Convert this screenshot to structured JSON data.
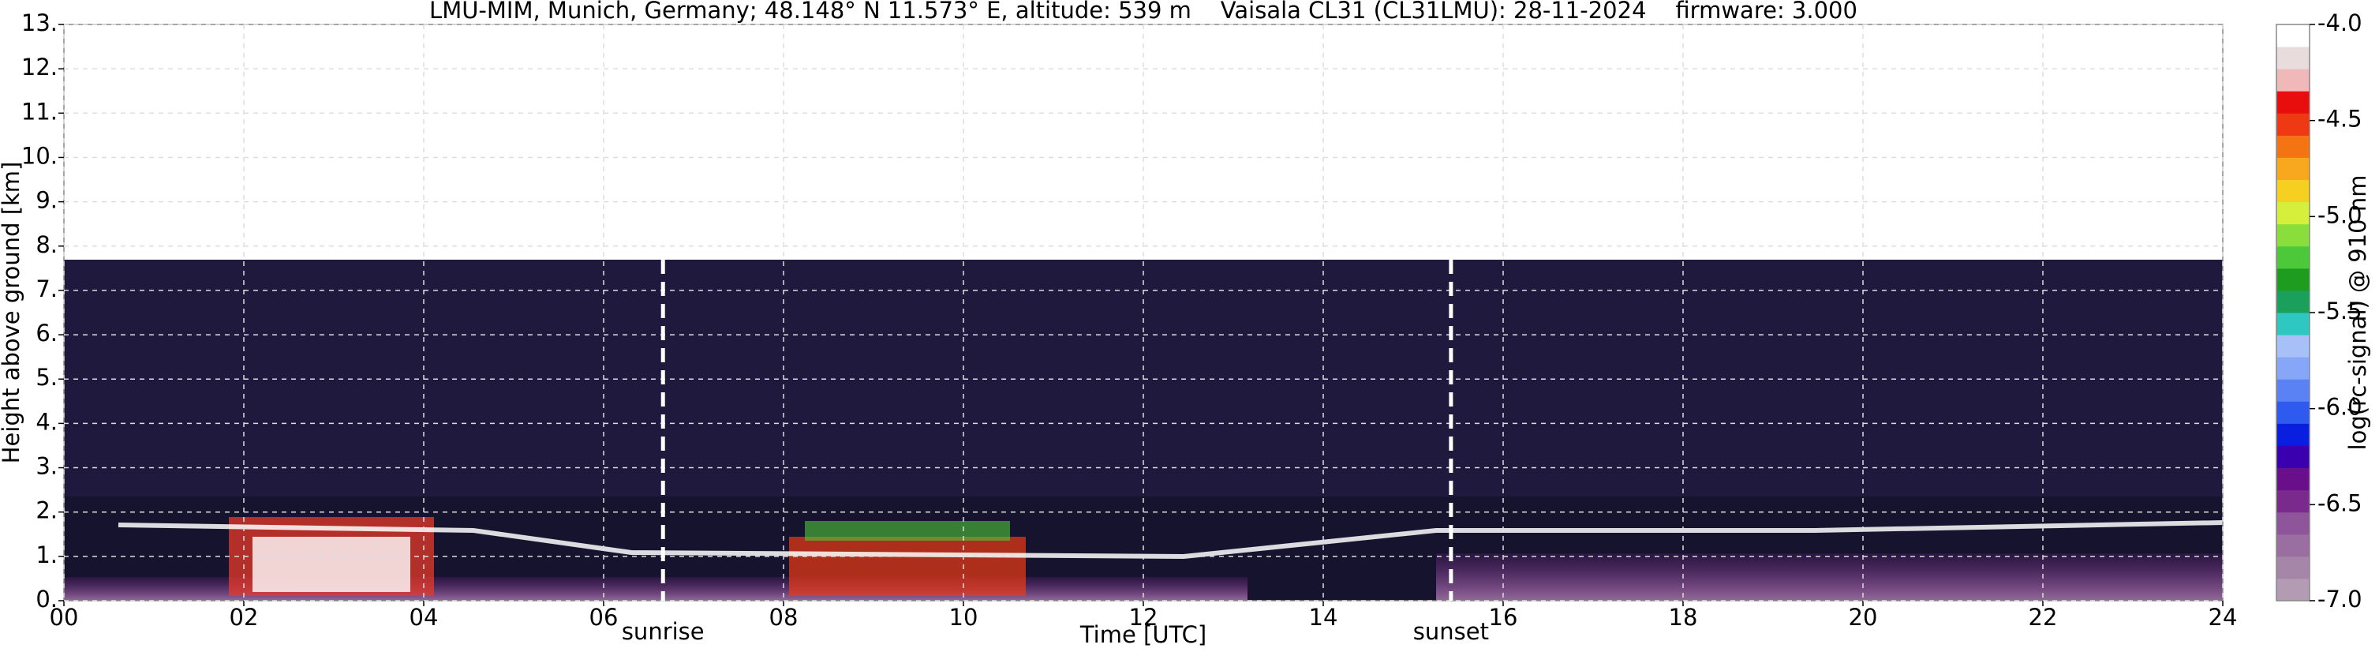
{
  "chart_data": {
    "type": "heatmap",
    "title": "LMU-MIM, Munich, Germany; 48.148° N 11.573° E, altitude: 539 m    Vaisala CL31 (CL31LMU): 28-11-2024    firmware: 3.000",
    "xlabel": "Time [UTC]",
    "ylabel": "Height above ground [km]",
    "xlim": [
      0,
      24
    ],
    "xticks": [
      {
        "value": 0,
        "label": "00"
      },
      {
        "value": 2,
        "label": "02"
      },
      {
        "value": 4,
        "label": "04"
      },
      {
        "value": 6,
        "label": "06"
      },
      {
        "value": 8,
        "label": "08"
      },
      10,
      12,
      14,
      16,
      18,
      20,
      22,
      24
    ],
    "ylim": [
      0,
      13
    ],
    "yticks": [
      {
        "value": 0,
        "label": "0."
      },
      {
        "value": 1,
        "label": "1."
      },
      {
        "value": 2,
        "label": "2."
      },
      {
        "value": 3,
        "label": "3."
      },
      {
        "value": 4,
        "label": "4."
      },
      {
        "value": 5,
        "label": "5."
      },
      {
        "value": 6,
        "label": "6."
      },
      {
        "value": 7,
        "label": "7."
      },
      {
        "value": 8,
        "label": "8."
      },
      {
        "value": 9,
        "label": "9."
      },
      {
        "value": 10,
        "label": "10."
      },
      {
        "value": 11,
        "label": "11."
      },
      {
        "value": 12,
        "label": "12."
      },
      {
        "value": 13,
        "label": "13."
      }
    ],
    "grid": true,
    "colorbar_label": "log(rc-signal) @ 910 nm",
    "clim": [
      -7,
      -4
    ],
    "cticks": [
      {
        "value": -7,
        "label": "-7.0"
      },
      -6.5,
      {
        "value": -6,
        "label": "-6.0"
      },
      -5.5,
      {
        "value": -5,
        "label": "-5.0"
      },
      -4.5,
      {
        "value": -4,
        "label": "-4.0"
      }
    ],
    "colormap": [
      "#b39bb3",
      "#a585a8",
      "#9a6ea0",
      "#8e559a",
      "#7a2a8c",
      "#6a0f8a",
      "#3a00b0",
      "#0a1ee0",
      "#2f5af0",
      "#5a82f5",
      "#86a6f7",
      "#a8c0f8",
      "#2ec8c0",
      "#1aa05a",
      "#1e9c20",
      "#4cc83a",
      "#8ade3c",
      "#d6ee3c",
      "#f5d020",
      "#f7a81c",
      "#f47414",
      "#ee3a14",
      "#e80e0e",
      "#f0b8b8",
      "#e8dcdc",
      "#ffffff"
    ],
    "annotations": [
      {
        "text": "sunrise",
        "x": 6.66
      },
      {
        "text": "sunset",
        "x": 15.42
      }
    ]
  }
}
